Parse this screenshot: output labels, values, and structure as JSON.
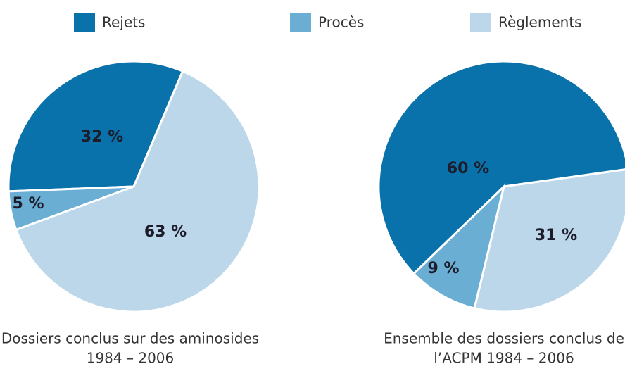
{
  "chart_data": [
    {
      "type": "pie",
      "categories": [
        "Rejets",
        "Procès",
        "Règlements"
      ],
      "values": [
        32,
        5,
        63
      ],
      "value_labels": [
        "32 %",
        "5 %",
        "63 %"
      ],
      "colors": [
        "#0a72aa",
        "#6aaed4",
        "#bcd6ea"
      ],
      "caption": [
        "Dossiers conclus sur des aminosides",
        "1984 – 2006"
      ]
    },
    {
      "type": "pie",
      "categories": [
        "Rejets",
        "Procès",
        "Règlements"
      ],
      "values": [
        60,
        9,
        31
      ],
      "value_labels": [
        "60 %",
        "9 %",
        "31 %"
      ],
      "colors": [
        "#0a72aa",
        "#6aaed4",
        "#bcd6ea"
      ],
      "caption": [
        "Ensemble des dossiers conclus de",
        "l’ACPM 1984 – 2006"
      ]
    }
  ]
}
